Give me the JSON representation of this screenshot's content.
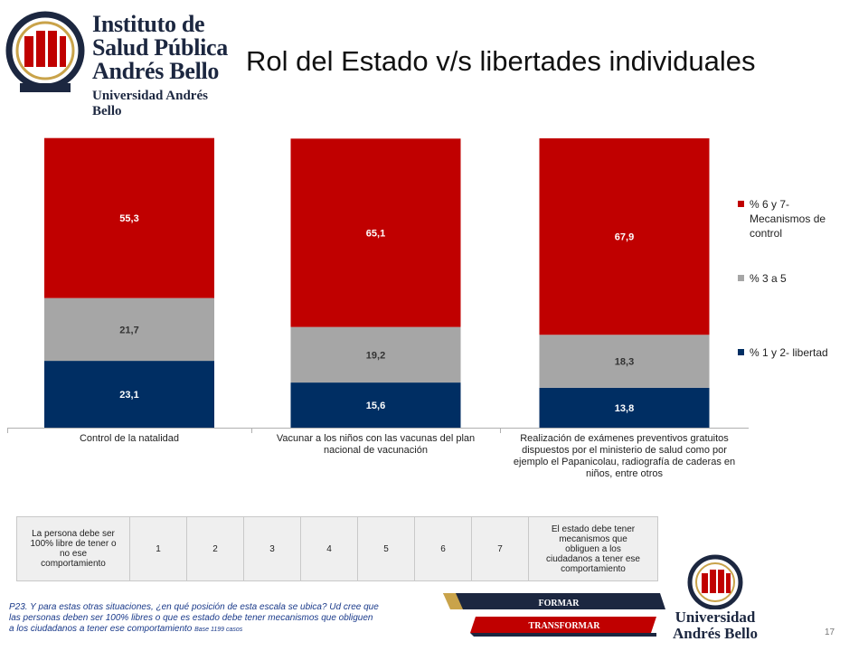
{
  "header": {
    "logo_lines": [
      "Instituto de",
      "Salud Pública",
      "Andrés Bello"
    ],
    "logo_sub": "Universidad Andrés Bello",
    "title": "Rol del Estado v/s libertades individuales"
  },
  "chart_data": {
    "type": "bar",
    "stacked": true,
    "percent_stacked": true,
    "categories": [
      "Control de la natalidad",
      "Vacunar a los niños con las vacunas del plan nacional de vacunación",
      "Realización de exámenes preventivos gratuitos dispuestos por el ministerio de salud como por ejemplo el Papanicolau, radiografía de caderas en niños, entre otros"
    ],
    "category_lines": [
      [
        "Control de la natalidad"
      ],
      [
        "Vacunar a los niños con las vacunas del plan",
        "nacional de vacunación"
      ],
      [
        "Realización de exámenes preventivos gratuitos",
        "dispuestos por el ministerio de salud como por",
        "ejemplo el Papanicolau, radiografía de caderas en",
        "niños, entre otros"
      ]
    ],
    "series": [
      {
        "name": "% 1 y 2- libertad",
        "values": [
          23.1,
          15.6,
          13.8
        ],
        "labels": [
          "23,1",
          "15,6",
          "13,8"
        ],
        "color": "#002e63",
        "label_color": "#ffffff"
      },
      {
        "name": "% 3 a 5",
        "values": [
          21.7,
          19.2,
          18.3
        ],
        "labels": [
          "21,7",
          "19,2",
          "18,3"
        ],
        "color": "#a6a6a6",
        "label_color": "#333333"
      },
      {
        "name": "% 6 y 7- Mecanismos de control",
        "values": [
          55.3,
          65.1,
          67.9
        ],
        "labels": [
          "55,3",
          "65,1",
          "67,9"
        ],
        "color": "#c00000",
        "label_color": "#ffffff"
      }
    ],
    "legend": {
      "placement": "right",
      "entries": [
        {
          "lines": [
            "% 6 y 7-",
            "Mecanismos de",
            "control"
          ],
          "color": "#c00000"
        },
        {
          "lines": [
            "% 3 a 5"
          ],
          "color": "#a6a6a6"
        },
        {
          "lines": [
            "% 1 y 2- libertad"
          ],
          "color": "#002e63"
        }
      ]
    },
    "ylim": [
      0,
      100
    ],
    "grid": false,
    "title": "",
    "xlabel": "",
    "ylabel": ""
  },
  "scale": {
    "left_lines": [
      "La persona debe ser",
      "100% libre de tener o",
      "no ese",
      "comportamiento"
    ],
    "numbers": [
      "1",
      "2",
      "3",
      "4",
      "5",
      "6",
      "7"
    ],
    "right_lines": [
      "El estado debe tener",
      "mecanismos que",
      "obliguen a los",
      "ciudadanos a tener ese",
      "comportamiento"
    ]
  },
  "footnote": {
    "text": "P23. Y para estas otras situaciones, ¿en qué posición de esta escala se ubica? Ud cree que las personas deben ser 100% libres o que es estado debe tener mecanismos que obliguen  a los ciudadanos a tener ese comportamiento",
    "base": "Base 1199 casos"
  },
  "banners": {
    "formar": "FORMAR",
    "transformar": "TRANSFORMAR"
  },
  "footer_logo_lines": [
    "Universidad",
    "Andrés Bello"
  ],
  "page_number": "17",
  "colors": {
    "navy": "#1c2740",
    "red": "#c00000",
    "dark_blue": "#002e63",
    "grey": "#a6a6a6"
  }
}
